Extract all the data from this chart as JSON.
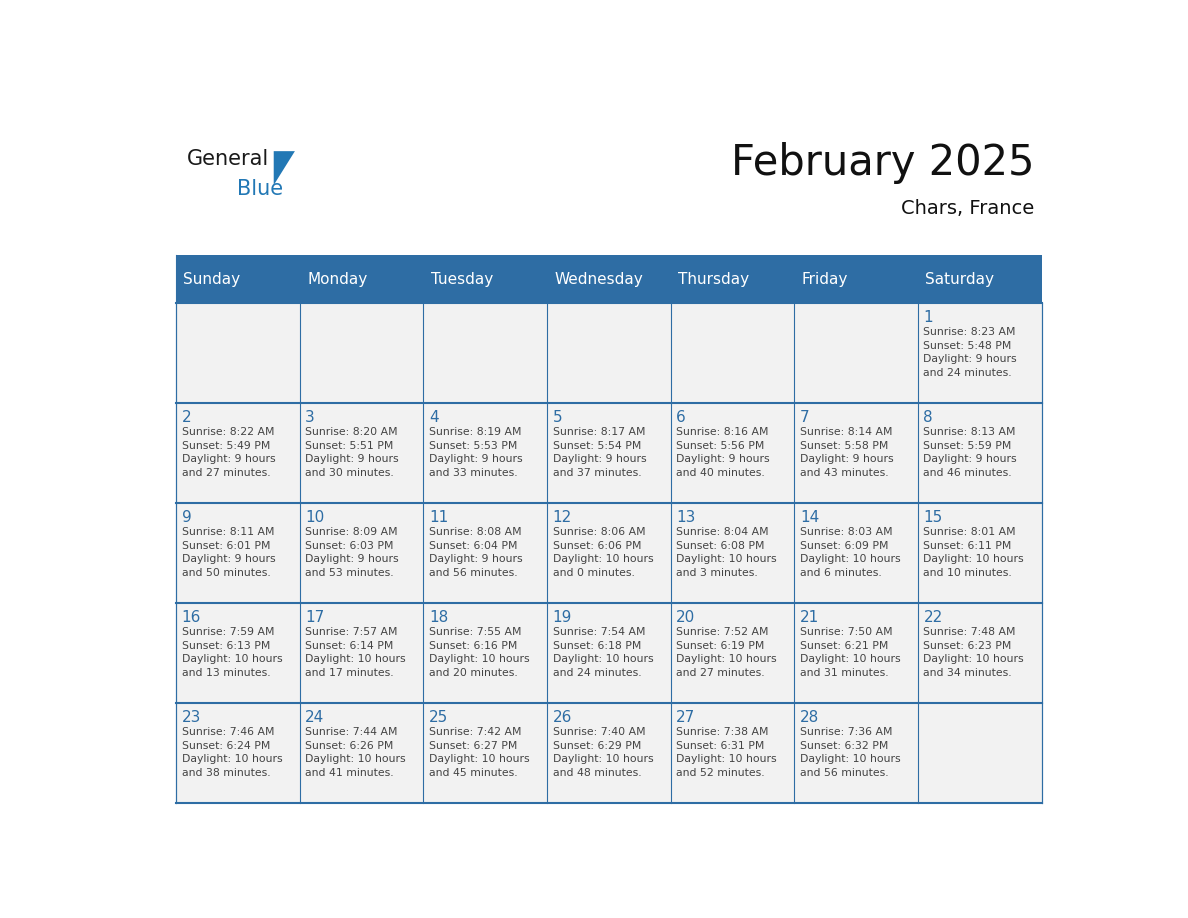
{
  "title": "February 2025",
  "subtitle": "Chars, France",
  "days_of_week": [
    "Sunday",
    "Monday",
    "Tuesday",
    "Wednesday",
    "Thursday",
    "Friday",
    "Saturday"
  ],
  "header_bg": "#2E6DA4",
  "header_fg": "#FFFFFF",
  "cell_bg": "#F2F2F2",
  "border_color": "#2E6DA4",
  "day_num_color": "#2E6DA4",
  "text_color": "#444444",
  "logo_general_color": "#1a1a1a",
  "logo_blue_color": "#2278b5",
  "week1": [
    {
      "day": "",
      "info": ""
    },
    {
      "day": "",
      "info": ""
    },
    {
      "day": "",
      "info": ""
    },
    {
      "day": "",
      "info": ""
    },
    {
      "day": "",
      "info": ""
    },
    {
      "day": "",
      "info": ""
    },
    {
      "day": "1",
      "info": "Sunrise: 8:23 AM\nSunset: 5:48 PM\nDaylight: 9 hours\nand 24 minutes."
    }
  ],
  "week2": [
    {
      "day": "2",
      "info": "Sunrise: 8:22 AM\nSunset: 5:49 PM\nDaylight: 9 hours\nand 27 minutes."
    },
    {
      "day": "3",
      "info": "Sunrise: 8:20 AM\nSunset: 5:51 PM\nDaylight: 9 hours\nand 30 minutes."
    },
    {
      "day": "4",
      "info": "Sunrise: 8:19 AM\nSunset: 5:53 PM\nDaylight: 9 hours\nand 33 minutes."
    },
    {
      "day": "5",
      "info": "Sunrise: 8:17 AM\nSunset: 5:54 PM\nDaylight: 9 hours\nand 37 minutes."
    },
    {
      "day": "6",
      "info": "Sunrise: 8:16 AM\nSunset: 5:56 PM\nDaylight: 9 hours\nand 40 minutes."
    },
    {
      "day": "7",
      "info": "Sunrise: 8:14 AM\nSunset: 5:58 PM\nDaylight: 9 hours\nand 43 minutes."
    },
    {
      "day": "8",
      "info": "Sunrise: 8:13 AM\nSunset: 5:59 PM\nDaylight: 9 hours\nand 46 minutes."
    }
  ],
  "week3": [
    {
      "day": "9",
      "info": "Sunrise: 8:11 AM\nSunset: 6:01 PM\nDaylight: 9 hours\nand 50 minutes."
    },
    {
      "day": "10",
      "info": "Sunrise: 8:09 AM\nSunset: 6:03 PM\nDaylight: 9 hours\nand 53 minutes."
    },
    {
      "day": "11",
      "info": "Sunrise: 8:08 AM\nSunset: 6:04 PM\nDaylight: 9 hours\nand 56 minutes."
    },
    {
      "day": "12",
      "info": "Sunrise: 8:06 AM\nSunset: 6:06 PM\nDaylight: 10 hours\nand 0 minutes."
    },
    {
      "day": "13",
      "info": "Sunrise: 8:04 AM\nSunset: 6:08 PM\nDaylight: 10 hours\nand 3 minutes."
    },
    {
      "day": "14",
      "info": "Sunrise: 8:03 AM\nSunset: 6:09 PM\nDaylight: 10 hours\nand 6 minutes."
    },
    {
      "day": "15",
      "info": "Sunrise: 8:01 AM\nSunset: 6:11 PM\nDaylight: 10 hours\nand 10 minutes."
    }
  ],
  "week4": [
    {
      "day": "16",
      "info": "Sunrise: 7:59 AM\nSunset: 6:13 PM\nDaylight: 10 hours\nand 13 minutes."
    },
    {
      "day": "17",
      "info": "Sunrise: 7:57 AM\nSunset: 6:14 PM\nDaylight: 10 hours\nand 17 minutes."
    },
    {
      "day": "18",
      "info": "Sunrise: 7:55 AM\nSunset: 6:16 PM\nDaylight: 10 hours\nand 20 minutes."
    },
    {
      "day": "19",
      "info": "Sunrise: 7:54 AM\nSunset: 6:18 PM\nDaylight: 10 hours\nand 24 minutes."
    },
    {
      "day": "20",
      "info": "Sunrise: 7:52 AM\nSunset: 6:19 PM\nDaylight: 10 hours\nand 27 minutes."
    },
    {
      "day": "21",
      "info": "Sunrise: 7:50 AM\nSunset: 6:21 PM\nDaylight: 10 hours\nand 31 minutes."
    },
    {
      "day": "22",
      "info": "Sunrise: 7:48 AM\nSunset: 6:23 PM\nDaylight: 10 hours\nand 34 minutes."
    }
  ],
  "week5": [
    {
      "day": "23",
      "info": "Sunrise: 7:46 AM\nSunset: 6:24 PM\nDaylight: 10 hours\nand 38 minutes."
    },
    {
      "day": "24",
      "info": "Sunrise: 7:44 AM\nSunset: 6:26 PM\nDaylight: 10 hours\nand 41 minutes."
    },
    {
      "day": "25",
      "info": "Sunrise: 7:42 AM\nSunset: 6:27 PM\nDaylight: 10 hours\nand 45 minutes."
    },
    {
      "day": "26",
      "info": "Sunrise: 7:40 AM\nSunset: 6:29 PM\nDaylight: 10 hours\nand 48 minutes."
    },
    {
      "day": "27",
      "info": "Sunrise: 7:38 AM\nSunset: 6:31 PM\nDaylight: 10 hours\nand 52 minutes."
    },
    {
      "day": "28",
      "info": "Sunrise: 7:36 AM\nSunset: 6:32 PM\nDaylight: 10 hours\nand 56 minutes."
    },
    {
      "day": "",
      "info": ""
    }
  ]
}
